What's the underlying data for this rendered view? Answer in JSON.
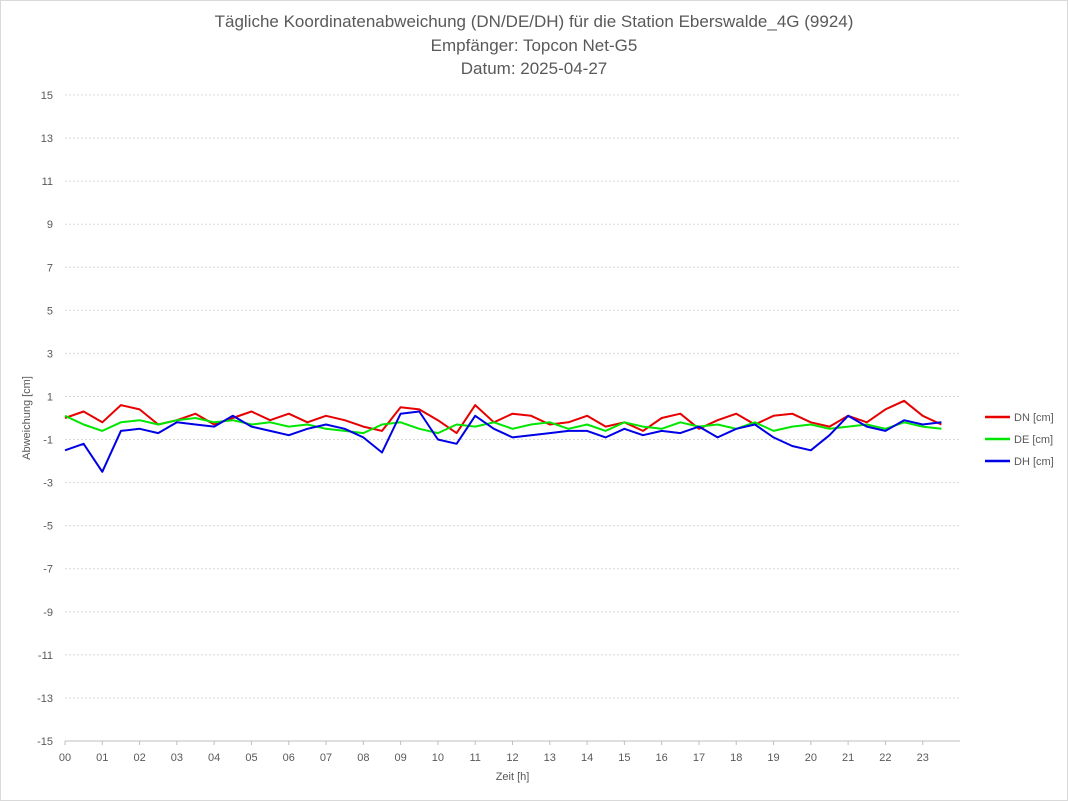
{
  "chart_data": {
    "type": "line",
    "title": "Tägliche Koordinatenabweichung (DN/DE/DH) für die Station Eberswalde_4G (9924)",
    "subtitle_receiver": "Empfänger: Topcon Net-G5",
    "subtitle_date": "Datum: 2025-04-27",
    "xlabel": "Zeit [h]",
    "ylabel": "Abweichung [cm]",
    "xlim": [
      0,
      24
    ],
    "ylim": [
      -15,
      15
    ],
    "x_ticks": [
      "00",
      "01",
      "02",
      "03",
      "04",
      "05",
      "06",
      "07",
      "08",
      "09",
      "10",
      "11",
      "12",
      "13",
      "14",
      "15",
      "16",
      "17",
      "18",
      "19",
      "20",
      "21",
      "22",
      "23"
    ],
    "y_ticks": [
      15,
      13,
      11,
      9,
      7,
      5,
      3,
      1,
      -1,
      -3,
      -5,
      -7,
      -9,
      -11,
      -13,
      -15
    ],
    "grid": "horizontal dotted",
    "legend_position": "right",
    "x": [
      0,
      0.5,
      1,
      1.5,
      2,
      2.5,
      3,
      3.5,
      4,
      4.5,
      5,
      5.5,
      6,
      6.5,
      7,
      7.5,
      8,
      8.5,
      9,
      9.5,
      10,
      10.5,
      11,
      11.5,
      12,
      12.5,
      13,
      13.5,
      14,
      14.5,
      15,
      15.5,
      16,
      16.5,
      17,
      17.5,
      18,
      18.5,
      19,
      19.5,
      20,
      20.5,
      21,
      21.5,
      22,
      22.5,
      23,
      23.5
    ],
    "series": [
      {
        "name": "DN [cm]",
        "color": "#e60000",
        "values": [
          0.0,
          0.3,
          -0.2,
          0.6,
          0.4,
          -0.3,
          -0.1,
          0.2,
          -0.3,
          0.0,
          0.3,
          -0.1,
          0.2,
          -0.2,
          0.1,
          -0.1,
          -0.4,
          -0.6,
          0.5,
          0.4,
          -0.1,
          -0.7,
          0.6,
          -0.2,
          0.2,
          0.1,
          -0.3,
          -0.2,
          0.1,
          -0.4,
          -0.2,
          -0.6,
          0.0,
          0.2,
          -0.5,
          -0.1,
          0.2,
          -0.3,
          0.1,
          0.2,
          -0.2,
          -0.4,
          0.1,
          -0.2,
          0.4,
          0.8,
          0.1,
          -0.3
        ]
      },
      {
        "name": "DE [cm]",
        "color": "#00e600",
        "values": [
          0.1,
          -0.3,
          -0.6,
          -0.2,
          -0.1,
          -0.3,
          -0.1,
          0.0,
          -0.2,
          -0.1,
          -0.3,
          -0.2,
          -0.4,
          -0.3,
          -0.5,
          -0.6,
          -0.7,
          -0.3,
          -0.2,
          -0.5,
          -0.7,
          -0.3,
          -0.4,
          -0.2,
          -0.5,
          -0.3,
          -0.2,
          -0.5,
          -0.3,
          -0.6,
          -0.2,
          -0.4,
          -0.5,
          -0.2,
          -0.4,
          -0.3,
          -0.5,
          -0.2,
          -0.6,
          -0.4,
          -0.3,
          -0.5,
          -0.4,
          -0.3,
          -0.5,
          -0.2,
          -0.4,
          -0.5
        ]
      },
      {
        "name": "DH [cm]",
        "color": "#0000e6",
        "values": [
          -1.5,
          -1.2,
          -2.5,
          -0.6,
          -0.5,
          -0.7,
          -0.2,
          -0.3,
          -0.4,
          0.1,
          -0.4,
          -0.6,
          -0.8,
          -0.5,
          -0.3,
          -0.5,
          -0.9,
          -1.6,
          0.2,
          0.3,
          -1.0,
          -1.2,
          0.1,
          -0.5,
          -0.9,
          -0.8,
          -0.7,
          -0.6,
          -0.6,
          -0.9,
          -0.5,
          -0.8,
          -0.6,
          -0.7,
          -0.4,
          -0.9,
          -0.5,
          -0.3,
          -0.9,
          -1.3,
          -1.5,
          -0.8,
          0.1,
          -0.4,
          -0.6,
          -0.1,
          -0.3,
          -0.2
        ]
      }
    ]
  }
}
